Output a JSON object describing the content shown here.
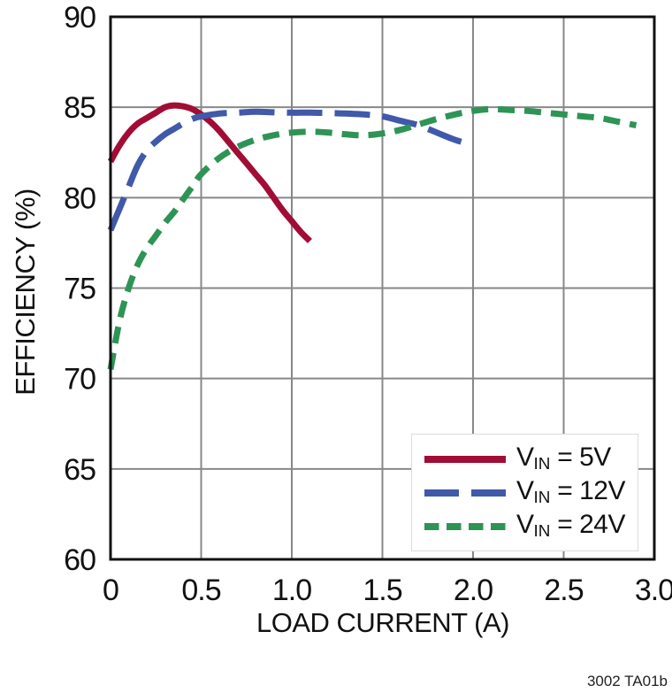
{
  "figure": {
    "note": "3002 TA01b"
  },
  "colors": {
    "background": "#ffffff",
    "grid": "#888888",
    "frame": "#111111",
    "text": "#111111"
  },
  "chart_data": {
    "type": "line",
    "title": "",
    "xlabel": "LOAD CURRENT (A)",
    "ylabel": "EFFICIENCY (%)",
    "xlim": [
      0,
      3.0
    ],
    "ylim": [
      60,
      90
    ],
    "grid": true,
    "grid_color": "#888888",
    "legend_position": "bottom-right",
    "x_ticks": [
      0,
      0.5,
      1.0,
      1.5,
      2.0,
      2.5,
      3.0
    ],
    "x_tick_labels": [
      "0",
      "0.5",
      "1.0",
      "1.5",
      "2.0",
      "2.5",
      "3.0"
    ],
    "y_ticks": [
      60,
      65,
      70,
      75,
      80,
      85,
      90
    ],
    "y_tick_labels": [
      "60",
      "65",
      "70",
      "75",
      "80",
      "85",
      "90"
    ],
    "series": [
      {
        "id": "vin-5v",
        "name": "VIN = 5V",
        "label": {
          "main": "V",
          "sub": "IN",
          "tail": " = 5V"
        },
        "color": "#A10D35",
        "style": "solid",
        "dash": null,
        "legend_dash": null,
        "points": [
          [
            0,
            82.0
          ],
          [
            0.05,
            82.9
          ],
          [
            0.1,
            83.6
          ],
          [
            0.15,
            84.1
          ],
          [
            0.2,
            84.4
          ],
          [
            0.25,
            84.7
          ],
          [
            0.3,
            85.0
          ],
          [
            0.35,
            85.1
          ],
          [
            0.4,
            85.05
          ],
          [
            0.45,
            84.9
          ],
          [
            0.5,
            84.6
          ],
          [
            0.55,
            84.2
          ],
          [
            0.6,
            83.7
          ],
          [
            0.65,
            83.1
          ],
          [
            0.7,
            82.5
          ],
          [
            0.75,
            81.9
          ],
          [
            0.8,
            81.3
          ],
          [
            0.85,
            80.7
          ],
          [
            0.9,
            80.0
          ],
          [
            0.95,
            79.3
          ],
          [
            1.0,
            78.7
          ],
          [
            1.05,
            78.1
          ],
          [
            1.1,
            77.6
          ]
        ]
      },
      {
        "id": "vin-12v",
        "name": "VIN = 12V",
        "label": {
          "main": "V",
          "sub": "IN",
          "tail": " = 12V"
        },
        "color": "#4059A9",
        "style": "long-dash",
        "dash": "40 14",
        "legend_dash": "39 14",
        "points": [
          [
            0,
            78.2
          ],
          [
            0.05,
            79.4
          ],
          [
            0.1,
            80.6
          ],
          [
            0.15,
            81.8
          ],
          [
            0.2,
            82.6
          ],
          [
            0.25,
            83.1
          ],
          [
            0.3,
            83.5
          ],
          [
            0.35,
            83.8
          ],
          [
            0.4,
            84.1
          ],
          [
            0.45,
            84.35
          ],
          [
            0.5,
            84.5
          ],
          [
            0.6,
            84.65
          ],
          [
            0.7,
            84.7
          ],
          [
            0.8,
            84.75
          ],
          [
            0.9,
            84.72
          ],
          [
            1.0,
            84.7
          ],
          [
            1.1,
            84.7
          ],
          [
            1.2,
            84.68
          ],
          [
            1.3,
            84.65
          ],
          [
            1.4,
            84.6
          ],
          [
            1.5,
            84.5
          ],
          [
            1.6,
            84.25
          ],
          [
            1.7,
            84.0
          ],
          [
            1.8,
            83.6
          ],
          [
            1.9,
            83.2
          ],
          [
            2.0,
            82.9
          ]
        ]
      },
      {
        "id": "vin-24v",
        "name": "VIN = 24V",
        "label": {
          "main": "V",
          "sub": "IN",
          "tail": " = 24V"
        },
        "color": "#2E9455",
        "style": "short-dash",
        "dash": "19 11",
        "legend_dash": "16.5 8.5",
        "points": [
          [
            0,
            70.5
          ],
          [
            0.05,
            73.2
          ],
          [
            0.1,
            75.0
          ],
          [
            0.15,
            76.3
          ],
          [
            0.2,
            77.2
          ],
          [
            0.25,
            77.9
          ],
          [
            0.3,
            78.6
          ],
          [
            0.35,
            79.2
          ],
          [
            0.4,
            79.9
          ],
          [
            0.45,
            80.6
          ],
          [
            0.5,
            81.3
          ],
          [
            0.6,
            82.2
          ],
          [
            0.7,
            82.8
          ],
          [
            0.8,
            83.2
          ],
          [
            0.9,
            83.45
          ],
          [
            1.0,
            83.6
          ],
          [
            1.1,
            83.65
          ],
          [
            1.2,
            83.6
          ],
          [
            1.3,
            83.5
          ],
          [
            1.4,
            83.45
          ],
          [
            1.5,
            83.55
          ],
          [
            1.6,
            83.75
          ],
          [
            1.7,
            84.05
          ],
          [
            1.8,
            84.35
          ],
          [
            1.9,
            84.6
          ],
          [
            2.0,
            84.8
          ],
          [
            2.1,
            84.9
          ],
          [
            2.2,
            84.85
          ],
          [
            2.3,
            84.8
          ],
          [
            2.4,
            84.7
          ],
          [
            2.5,
            84.6
          ],
          [
            2.6,
            84.5
          ],
          [
            2.7,
            84.4
          ],
          [
            2.8,
            84.2
          ],
          [
            2.9,
            84.0
          ]
        ]
      }
    ]
  }
}
